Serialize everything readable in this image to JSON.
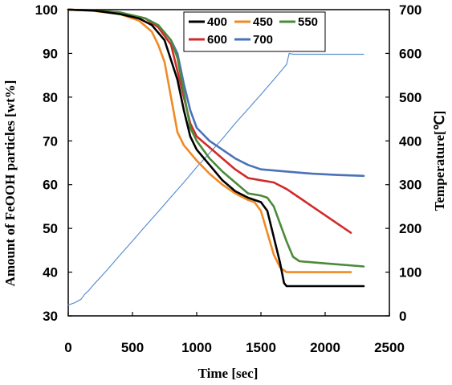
{
  "chart_data": {
    "type": "line",
    "xlabel": "Time [sec]",
    "ylabel": "Amount of FeOOH particles [wt%]",
    "y2label": "Temperature[℃]",
    "xlim": [
      0,
      2500
    ],
    "ylim": [
      30,
      100
    ],
    "y2lim": [
      0,
      700
    ],
    "x_ticks": [
      "0",
      "500",
      "1000",
      "1500",
      "2000",
      "2500"
    ],
    "y_ticks": [
      "30",
      "40",
      "50",
      "60",
      "70",
      "80",
      "90",
      "100"
    ],
    "y2_ticks": [
      "0",
      "100",
      "200",
      "300",
      "400",
      "500",
      "600",
      "700"
    ],
    "grid": false,
    "legend_position": "top-right",
    "series": [
      {
        "name": "400",
        "color": "#000000",
        "axis": "left",
        "x": [
          0,
          200,
          400,
          550,
          650,
          750,
          850,
          900,
          950,
          1000,
          1100,
          1200,
          1300,
          1400,
          1500,
          1550,
          1600,
          1650,
          1680,
          1700,
          1800,
          2000,
          2300
        ],
        "y": [
          100,
          99.8,
          99,
          98,
          96.5,
          93,
          84,
          77,
          71,
          68,
          64.5,
          61,
          58.5,
          57,
          56,
          54,
          48,
          42,
          37.5,
          36.8,
          36.8,
          36.8,
          36.8
        ]
      },
      {
        "name": "450",
        "color": "#F08A24",
        "axis": "left",
        "x": [
          0,
          200,
          400,
          550,
          650,
          700,
          750,
          800,
          850,
          900,
          1000,
          1100,
          1200,
          1300,
          1400,
          1450,
          1500,
          1550,
          1600,
          1650,
          1700,
          2000,
          2200
        ],
        "y": [
          100,
          99.7,
          99,
          97.5,
          95,
          92,
          88,
          80,
          72,
          69,
          65.5,
          62.5,
          60,
          58,
          56.5,
          56,
          54,
          49,
          44,
          41,
          40,
          40,
          40
        ]
      },
      {
        "name": "550",
        "color": "#4C8A3A",
        "axis": "left",
        "x": [
          0,
          200,
          400,
          600,
          700,
          800,
          850,
          900,
          950,
          1000,
          1100,
          1200,
          1300,
          1400,
          1500,
          1550,
          1600,
          1650,
          1700,
          1750,
          1800,
          2000,
          2300
        ],
        "y": [
          100,
          99.8,
          99.4,
          98,
          96.5,
          93,
          89,
          81,
          73,
          70,
          66,
          63,
          60.5,
          58,
          57.5,
          57,
          55,
          51,
          47,
          43.5,
          42.5,
          42,
          41.3
        ]
      },
      {
        "name": "600",
        "color": "#D12A2A",
        "axis": "left",
        "x": [
          0,
          200,
          400,
          600,
          700,
          800,
          900,
          950,
          1000,
          1100,
          1200,
          1300,
          1400,
          1500,
          1600,
          1700,
          1800,
          1900,
          2000,
          2100,
          2200
        ],
        "y": [
          100,
          99.8,
          99.3,
          98,
          96,
          92,
          80,
          74,
          71,
          68.5,
          66,
          63.5,
          61.5,
          61,
          60.5,
          59,
          57,
          55,
          53,
          51,
          49
        ]
      },
      {
        "name": "700",
        "color": "#4A72B8",
        "axis": "left",
        "x": [
          0,
          200,
          400,
          600,
          700,
          800,
          850,
          900,
          950,
          1000,
          1100,
          1200,
          1300,
          1400,
          1500,
          1700,
          1900,
          2100,
          2300
        ],
        "y": [
          100,
          99.8,
          99.3,
          98,
          96.5,
          93,
          90,
          83,
          77,
          73,
          70,
          68,
          66,
          64.5,
          63.5,
          63,
          62.5,
          62.2,
          62
        ]
      },
      {
        "color": "#5B8FD0",
        "axis": "right",
        "thin": true,
        "x": [
          0,
          50,
          100,
          130,
          160,
          200,
          300,
          400,
          500,
          600,
          700,
          800,
          900,
          1000,
          1100,
          1200,
          1300,
          1400,
          1500,
          1600,
          1700,
          1720,
          1750,
          1800,
          2000,
          2300
        ],
        "y": [
          25,
          30,
          38,
          50,
          58,
          72,
          104,
          138,
          171,
          205,
          238,
          272,
          305,
          340,
          372,
          405,
          440,
          473,
          506,
          540,
          575,
          600,
          598,
          598,
          598,
          598
        ]
      }
    ]
  }
}
